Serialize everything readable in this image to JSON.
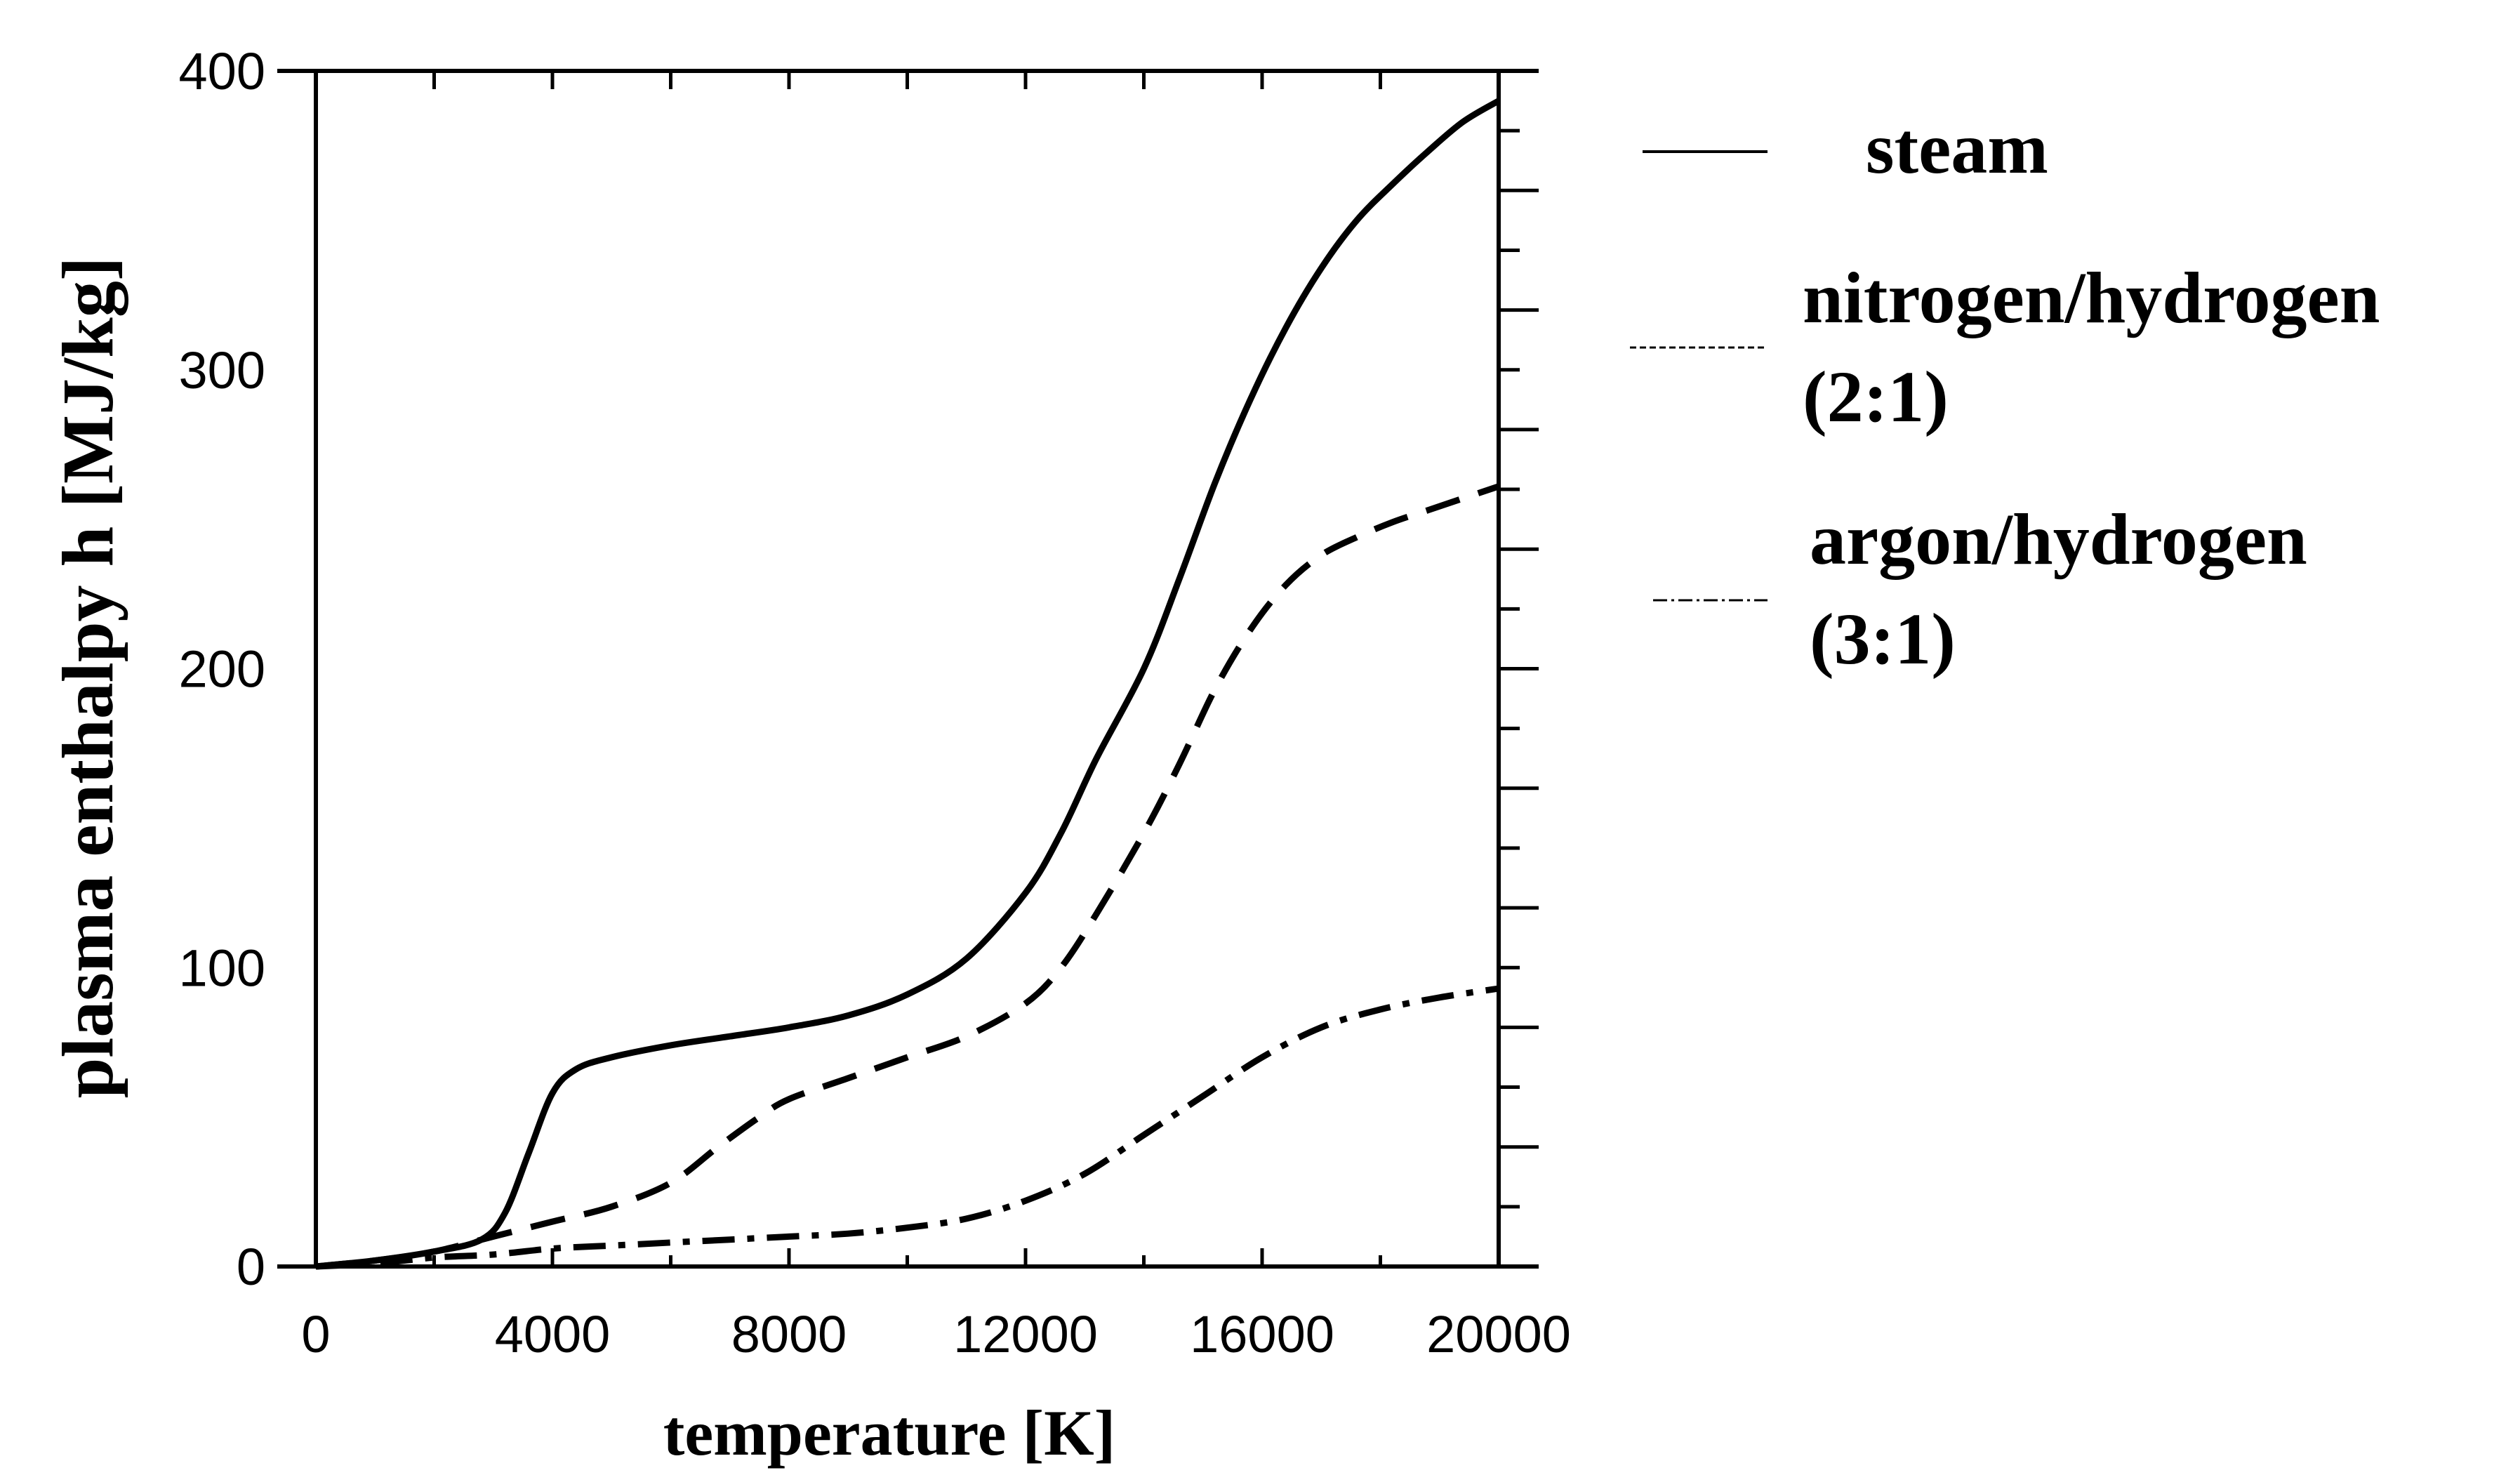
{
  "chart_data": {
    "type": "line",
    "xlabel": "temperature [K]",
    "ylabel": "plasma enthalpy h [MJ/kg]",
    "xlim": [
      0,
      20000
    ],
    "ylim": [
      0,
      400
    ],
    "x_ticks": [
      0,
      4000,
      8000,
      12000,
      16000,
      20000
    ],
    "x_tick_labels": [
      "0",
      "4000",
      "8000",
      "12000",
      "16000",
      "20000"
    ],
    "y_ticks": [
      0,
      100,
      200,
      300,
      400
    ],
    "y_tick_labels": [
      "0",
      "100",
      "200",
      "300",
      "400"
    ],
    "legend": {
      "placement": "right",
      "entries": [
        {
          "lines": [
            "steam"
          ],
          "style": "solid"
        },
        {
          "lines": [
            "nitrogen/hydrogen",
            "(2:1)"
          ],
          "style": "dashed"
        },
        {
          "lines": [
            "argon/hydrogen",
            "(3:1)"
          ],
          "style": "dashdot"
        }
      ]
    },
    "series": [
      {
        "name": "steam",
        "style": "solid",
        "x": [
          0,
          1000,
          2000,
          2800,
          3200,
          3600,
          4000,
          4400,
          5000,
          6000,
          7000,
          8000,
          9000,
          10000,
          11000,
          12000,
          12600,
          13200,
          14000,
          14600,
          15200,
          15800,
          16400,
          17000,
          17600,
          18200,
          18800,
          19400,
          20000
        ],
        "y": [
          0,
          2,
          5,
          9,
          18,
          38,
          58,
          66,
          70,
          74,
          77,
          80,
          84,
          91,
          103,
          125,
          145,
          170,
          200,
          230,
          262,
          290,
          314,
          334,
          350,
          362,
          373,
          383,
          390
        ]
      },
      {
        "name": "nitrogen/hydrogen (2:1)",
        "style": "dashed",
        "x": [
          0,
          1000,
          2000,
          3000,
          4000,
          5000,
          6000,
          6800,
          7500,
          8000,
          9000,
          10000,
          11000,
          12000,
          12600,
          13200,
          14000,
          14600,
          15200,
          15800,
          16400,
          17000,
          17600,
          18200,
          18800,
          19400,
          20000
        ],
        "y": [
          0,
          2,
          5,
          10,
          15,
          20,
          28,
          40,
          50,
          56,
          63,
          70,
          77,
          88,
          100,
          118,
          145,
          168,
          193,
          213,
          228,
          238,
          244,
          249,
          253,
          257,
          261
        ]
      },
      {
        "name": "argon/hydrogen (3:1)",
        "style": "dashdot",
        "x": [
          0,
          1000,
          2000,
          3000,
          4000,
          5000,
          6000,
          7000,
          8000,
          9000,
          10000,
          11000,
          12000,
          13000,
          14000,
          15000,
          16000,
          17000,
          18000,
          19000,
          20000
        ],
        "y": [
          0,
          1,
          3,
          4,
          6,
          7,
          8,
          9,
          10,
          11,
          13,
          16,
          22,
          31,
          44,
          57,
          70,
          80,
          86,
          90,
          93
        ]
      }
    ]
  }
}
